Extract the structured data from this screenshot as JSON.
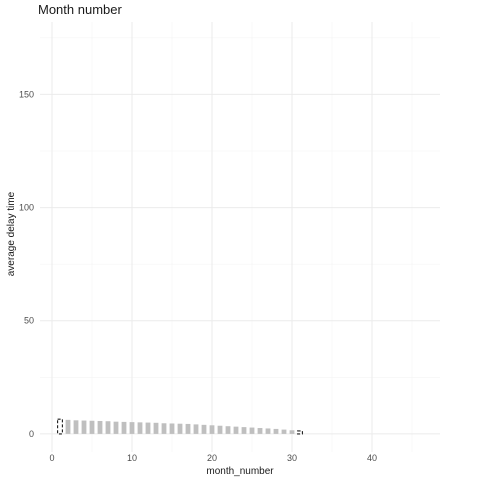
{
  "chart_data": {
    "type": "bar",
    "title": "Month number",
    "xlabel": "month_number",
    "ylabel": "average delay time",
    "xlim": [
      -1.5,
      48.5
    ],
    "ylim": [
      -8,
      182
    ],
    "x_ticks": [
      0,
      10,
      20,
      30,
      40
    ],
    "y_ticks": [
      0,
      50,
      100,
      150
    ],
    "grid": true,
    "legend": "none",
    "bar_color": "#bfbfbf",
    "highlight_color": "#1a1a1a",
    "x": [
      1,
      2,
      3,
      4,
      5,
      6,
      7,
      8,
      9,
      10,
      11,
      12,
      13,
      14,
      15,
      16,
      17,
      18,
      19,
      20,
      21,
      22,
      23,
      24,
      25,
      26,
      27,
      28,
      29,
      30,
      31
    ],
    "values": [
      6.5,
      6.2,
      6.0,
      5.9,
      5.8,
      5.7,
      5.6,
      5.4,
      5.3,
      5.2,
      5.1,
      5.0,
      4.9,
      4.7,
      4.6,
      4.5,
      4.4,
      4.2,
      4.0,
      3.8,
      3.6,
      3.4,
      3.2,
      3.0,
      2.8,
      2.6,
      2.4,
      2.2,
      1.9,
      1.6,
      1.3
    ],
    "highlighted": [
      1,
      31
    ]
  }
}
